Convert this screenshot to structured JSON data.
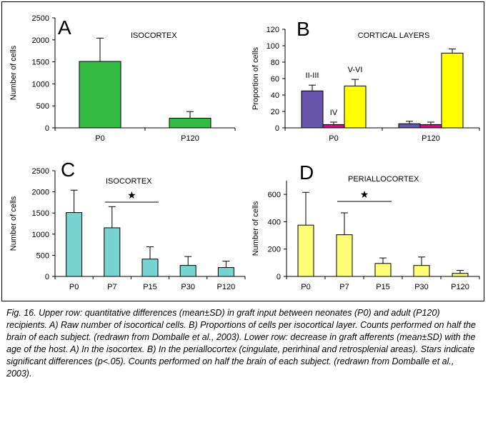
{
  "caption": "Fig. 16. Upper row: quantitative differences (mean±SD) in graft input between neonates (P0) and adult (P120) recipients. A) Raw number of isocortical cells. B) Proportions of cells per isocortical layer. Counts performed on half the brain of each subject. (redrawn from Domballe et al., 2003). Lower row: decrease in graft afferents (mean±SD) with the age of the host. A) In the isocortex. B) In the periallocortex (cingulate, perirhinal and retrosplenial areas). Stars indicate significant differences (p<.05). Counts performed on half the brain of each subject. (redrawn from Domballe et al., 2003).",
  "chart_data": [
    {
      "type": "bar",
      "panel_letter": "A",
      "title": "ISOCORTEX",
      "ylabel": "Number of cells",
      "ylim": [
        0,
        2500
      ],
      "yticks": [
        0,
        500,
        1000,
        1500,
        2000,
        2500
      ],
      "categories": [
        "P0",
        "P120"
      ],
      "values": [
        1510,
        220
      ],
      "errors": [
        530,
        150
      ],
      "color": "#33bb44",
      "grid": false
    },
    {
      "type": "bar",
      "panel_letter": "B",
      "title": "CORTICAL LAYERS",
      "ylabel": "Proportion of cells",
      "ylim": [
        0,
        120
      ],
      "yticks": [
        0,
        20,
        40,
        60,
        80,
        100,
        120
      ],
      "categories": [
        "P0",
        "P120"
      ],
      "series": [
        {
          "name": "II-III",
          "values": [
            45,
            5
          ],
          "errors": [
            7,
            3
          ],
          "color": "#6655aa"
        },
        {
          "name": "IV",
          "values": [
            4,
            4
          ],
          "errors": [
            3,
            3
          ],
          "color": "#dd0088"
        },
        {
          "name": "V-VI",
          "values": [
            51,
            91
          ],
          "errors": [
            8,
            5
          ],
          "color": "#ffff00"
        }
      ],
      "grid": false
    },
    {
      "type": "bar",
      "panel_letter": "C",
      "title": "ISOCORTEX",
      "ylabel": "Number of cells",
      "ylim": [
        0,
        2500
      ],
      "yticks": [
        0,
        500,
        1000,
        1500,
        2000,
        2500
      ],
      "categories": [
        "P0",
        "P7",
        "P15",
        "P30",
        "P120"
      ],
      "values": [
        1510,
        1150,
        410,
        260,
        210
      ],
      "errors": [
        530,
        500,
        290,
        210,
        150
      ],
      "color": "#77d4d0",
      "significance": {
        "from": 1,
        "to": 2,
        "symbol": "★"
      },
      "grid": false
    },
    {
      "type": "bar",
      "panel_letter": "D",
      "title": "PERIALLOCORTEX",
      "ylabel": "Number of cells",
      "ylim": [
        0,
        700
      ],
      "yticks": [
        0,
        200,
        400,
        600
      ],
      "categories": [
        "P0",
        "P7",
        "P15",
        "P30",
        "P120"
      ],
      "values": [
        375,
        305,
        95,
        80,
        22
      ],
      "errors": [
        240,
        160,
        40,
        62,
        22
      ],
      "color": "#ffff77",
      "significance": {
        "from": 1,
        "to": 2,
        "symbol": "★"
      },
      "grid": false
    }
  ]
}
